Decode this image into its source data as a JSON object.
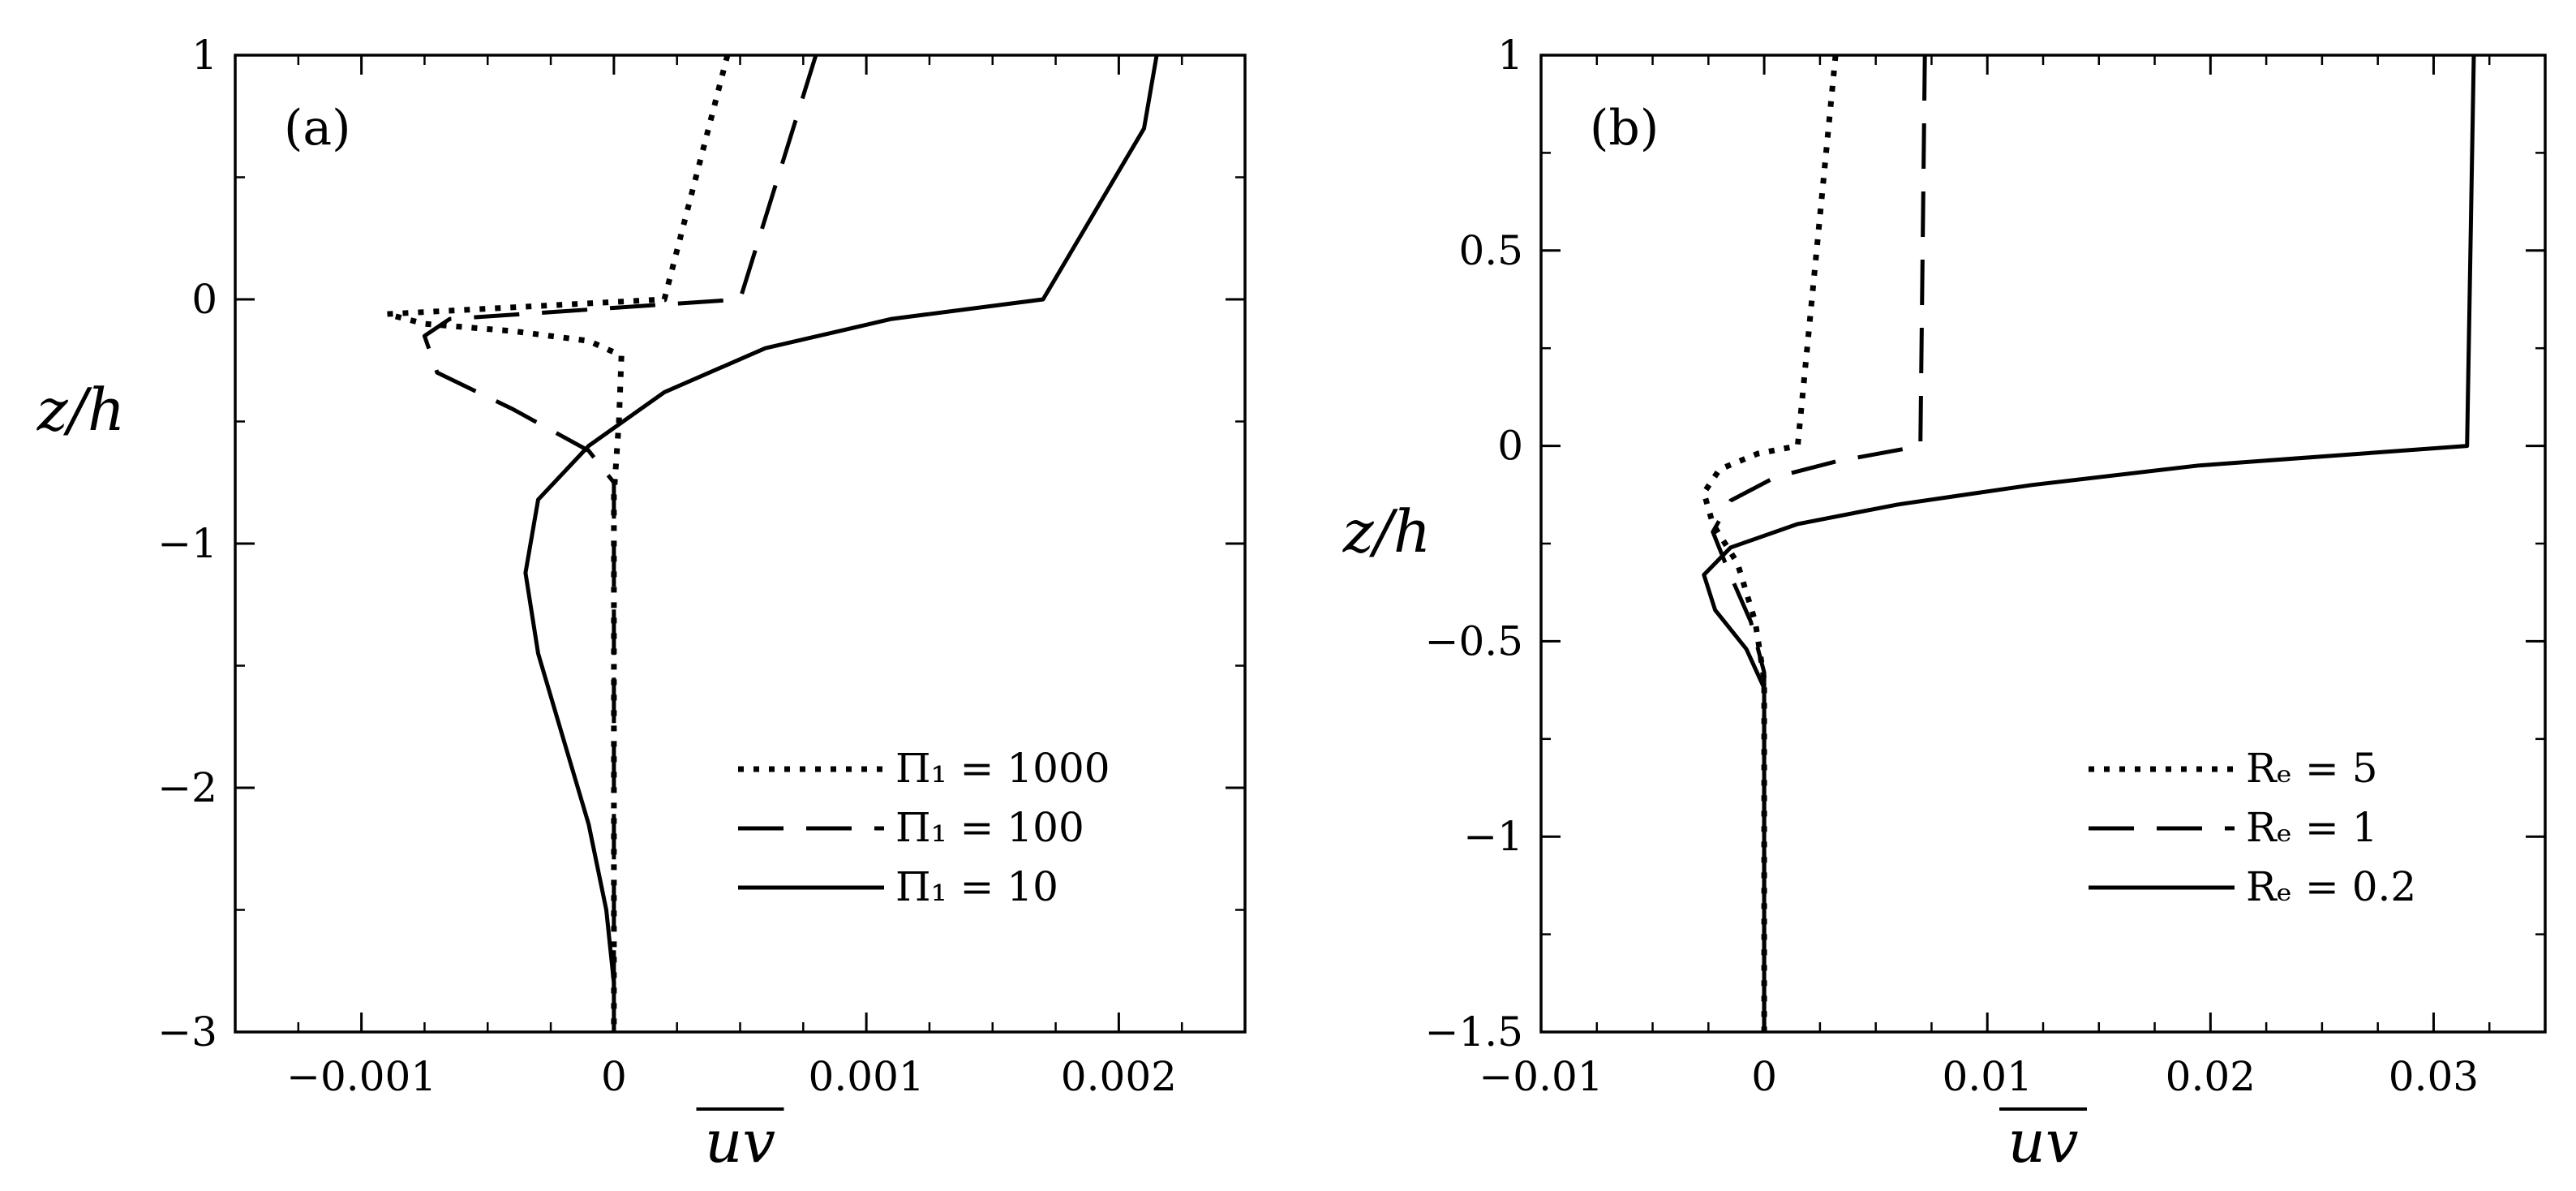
{
  "chart_data": [
    {
      "type": "line",
      "panel_label": "(a)",
      "xlabel": "uv",
      "ylabel": "z/h",
      "xlim": [
        -0.0015,
        0.0025
      ],
      "ylim": [
        -3,
        1
      ],
      "xticks": [
        -0.001,
        0,
        0.001,
        0.002
      ],
      "xtick_labels": [
        "−0.001",
        "0",
        "0.001",
        "0.002"
      ],
      "yticks": [
        1,
        0,
        -1,
        -2,
        -3
      ],
      "ytick_labels": [
        "1",
        "0",
        "−1",
        "−2",
        "−3"
      ],
      "legend_position": "bottom-right",
      "series": [
        {
          "name": "Π₁ = 1000",
          "style": "dotted",
          "points": [
            [
              0.00045,
              1.0
            ],
            [
              0.0002,
              0.0
            ],
            [
              -0.0009,
              -0.06
            ],
            [
              -0.00075,
              -0.1
            ],
            [
              -0.0004,
              -0.13
            ],
            [
              -0.0001,
              -0.17
            ],
            [
              3e-05,
              -0.23
            ],
            [
              2e-05,
              -0.5
            ],
            [
              0.0,
              -0.8
            ],
            [
              0.0,
              -3.0
            ]
          ]
        },
        {
          "name": "Π₁ = 100",
          "style": "dashed",
          "points": [
            [
              0.0008,
              1.0
            ],
            [
              0.0005,
              0.0
            ],
            [
              -0.00065,
              -0.08
            ],
            [
              -0.00075,
              -0.15
            ],
            [
              -0.0007,
              -0.3
            ],
            [
              -0.0004,
              -0.45
            ],
            [
              -0.0001,
              -0.62
            ],
            [
              0.0,
              -0.75
            ],
            [
              0.0,
              -3.0
            ]
          ]
        },
        {
          "name": "Π₁ = 10",
          "style": "solid",
          "points": [
            [
              0.00215,
              1.0
            ],
            [
              0.0021,
              0.7
            ],
            [
              0.0019,
              0.35
            ],
            [
              0.0017,
              0.0
            ],
            [
              0.0011,
              -0.08
            ],
            [
              0.0006,
              -0.2
            ],
            [
              0.0002,
              -0.38
            ],
            [
              -0.0001,
              -0.6
            ],
            [
              -0.0003,
              -0.82
            ],
            [
              -0.00035,
              -1.12
            ],
            [
              -0.0003,
              -1.45
            ],
            [
              -0.0002,
              -1.8
            ],
            [
              -0.0001,
              -2.15
            ],
            [
              -3e-05,
              -2.5
            ],
            [
              0.0,
              -2.8
            ],
            [
              0.0,
              -3.0
            ]
          ]
        }
      ]
    },
    {
      "type": "line",
      "panel_label": "(b)",
      "xlabel": "uv",
      "ylabel": "z/h",
      "xlim": [
        -0.01,
        0.035
      ],
      "ylim": [
        -1.5,
        1
      ],
      "xticks": [
        -0.01,
        0,
        0.01,
        0.02,
        0.03
      ],
      "xtick_labels": [
        "−0.01",
        "0",
        "0.01",
        "0.02",
        "0.03"
      ],
      "yticks": [
        1,
        0.5,
        0,
        -0.5,
        -1,
        -1.5
      ],
      "ytick_labels": [
        "1",
        "0.5",
        "0",
        "−0.5",
        "−1",
        "−1.5"
      ],
      "legend_position": "bottom-right",
      "series": [
        {
          "name": "Rₑ = 5",
          "style": "dotted",
          "points": [
            [
              0.0032,
              1.0
            ],
            [
              0.0015,
              0.0
            ],
            [
              -0.0003,
              -0.02
            ],
            [
              -0.002,
              -0.06
            ],
            [
              -0.0027,
              -0.12
            ],
            [
              -0.0023,
              -0.2
            ],
            [
              -0.0012,
              -0.3
            ],
            [
              -0.0004,
              -0.45
            ],
            [
              0.0,
              -0.6
            ],
            [
              0.0,
              -1.5
            ]
          ]
        },
        {
          "name": "Rₑ = 1",
          "style": "dashed",
          "points": [
            [
              0.0072,
              1.0
            ],
            [
              0.007,
              0.0
            ],
            [
              0.0032,
              -0.04
            ],
            [
              0.0005,
              -0.08
            ],
            [
              -0.0015,
              -0.14
            ],
            [
              -0.0023,
              -0.22
            ],
            [
              -0.0016,
              -0.32
            ],
            [
              -0.0006,
              -0.45
            ],
            [
              0.0,
              -0.58
            ],
            [
              0.0,
              -1.5
            ]
          ]
        },
        {
          "name": "Rₑ = 0.2",
          "style": "solid",
          "points": [
            [
              0.0318,
              1.0
            ],
            [
              0.0315,
              0.0
            ],
            [
              0.0195,
              -0.05
            ],
            [
              0.012,
              -0.1
            ],
            [
              0.006,
              -0.15
            ],
            [
              0.0015,
              -0.2
            ],
            [
              -0.0015,
              -0.26
            ],
            [
              -0.0027,
              -0.33
            ],
            [
              -0.0022,
              -0.42
            ],
            [
              -0.0008,
              -0.52
            ],
            [
              0.0,
              -0.62
            ],
            [
              0.0,
              -1.5
            ]
          ]
        }
      ]
    }
  ]
}
